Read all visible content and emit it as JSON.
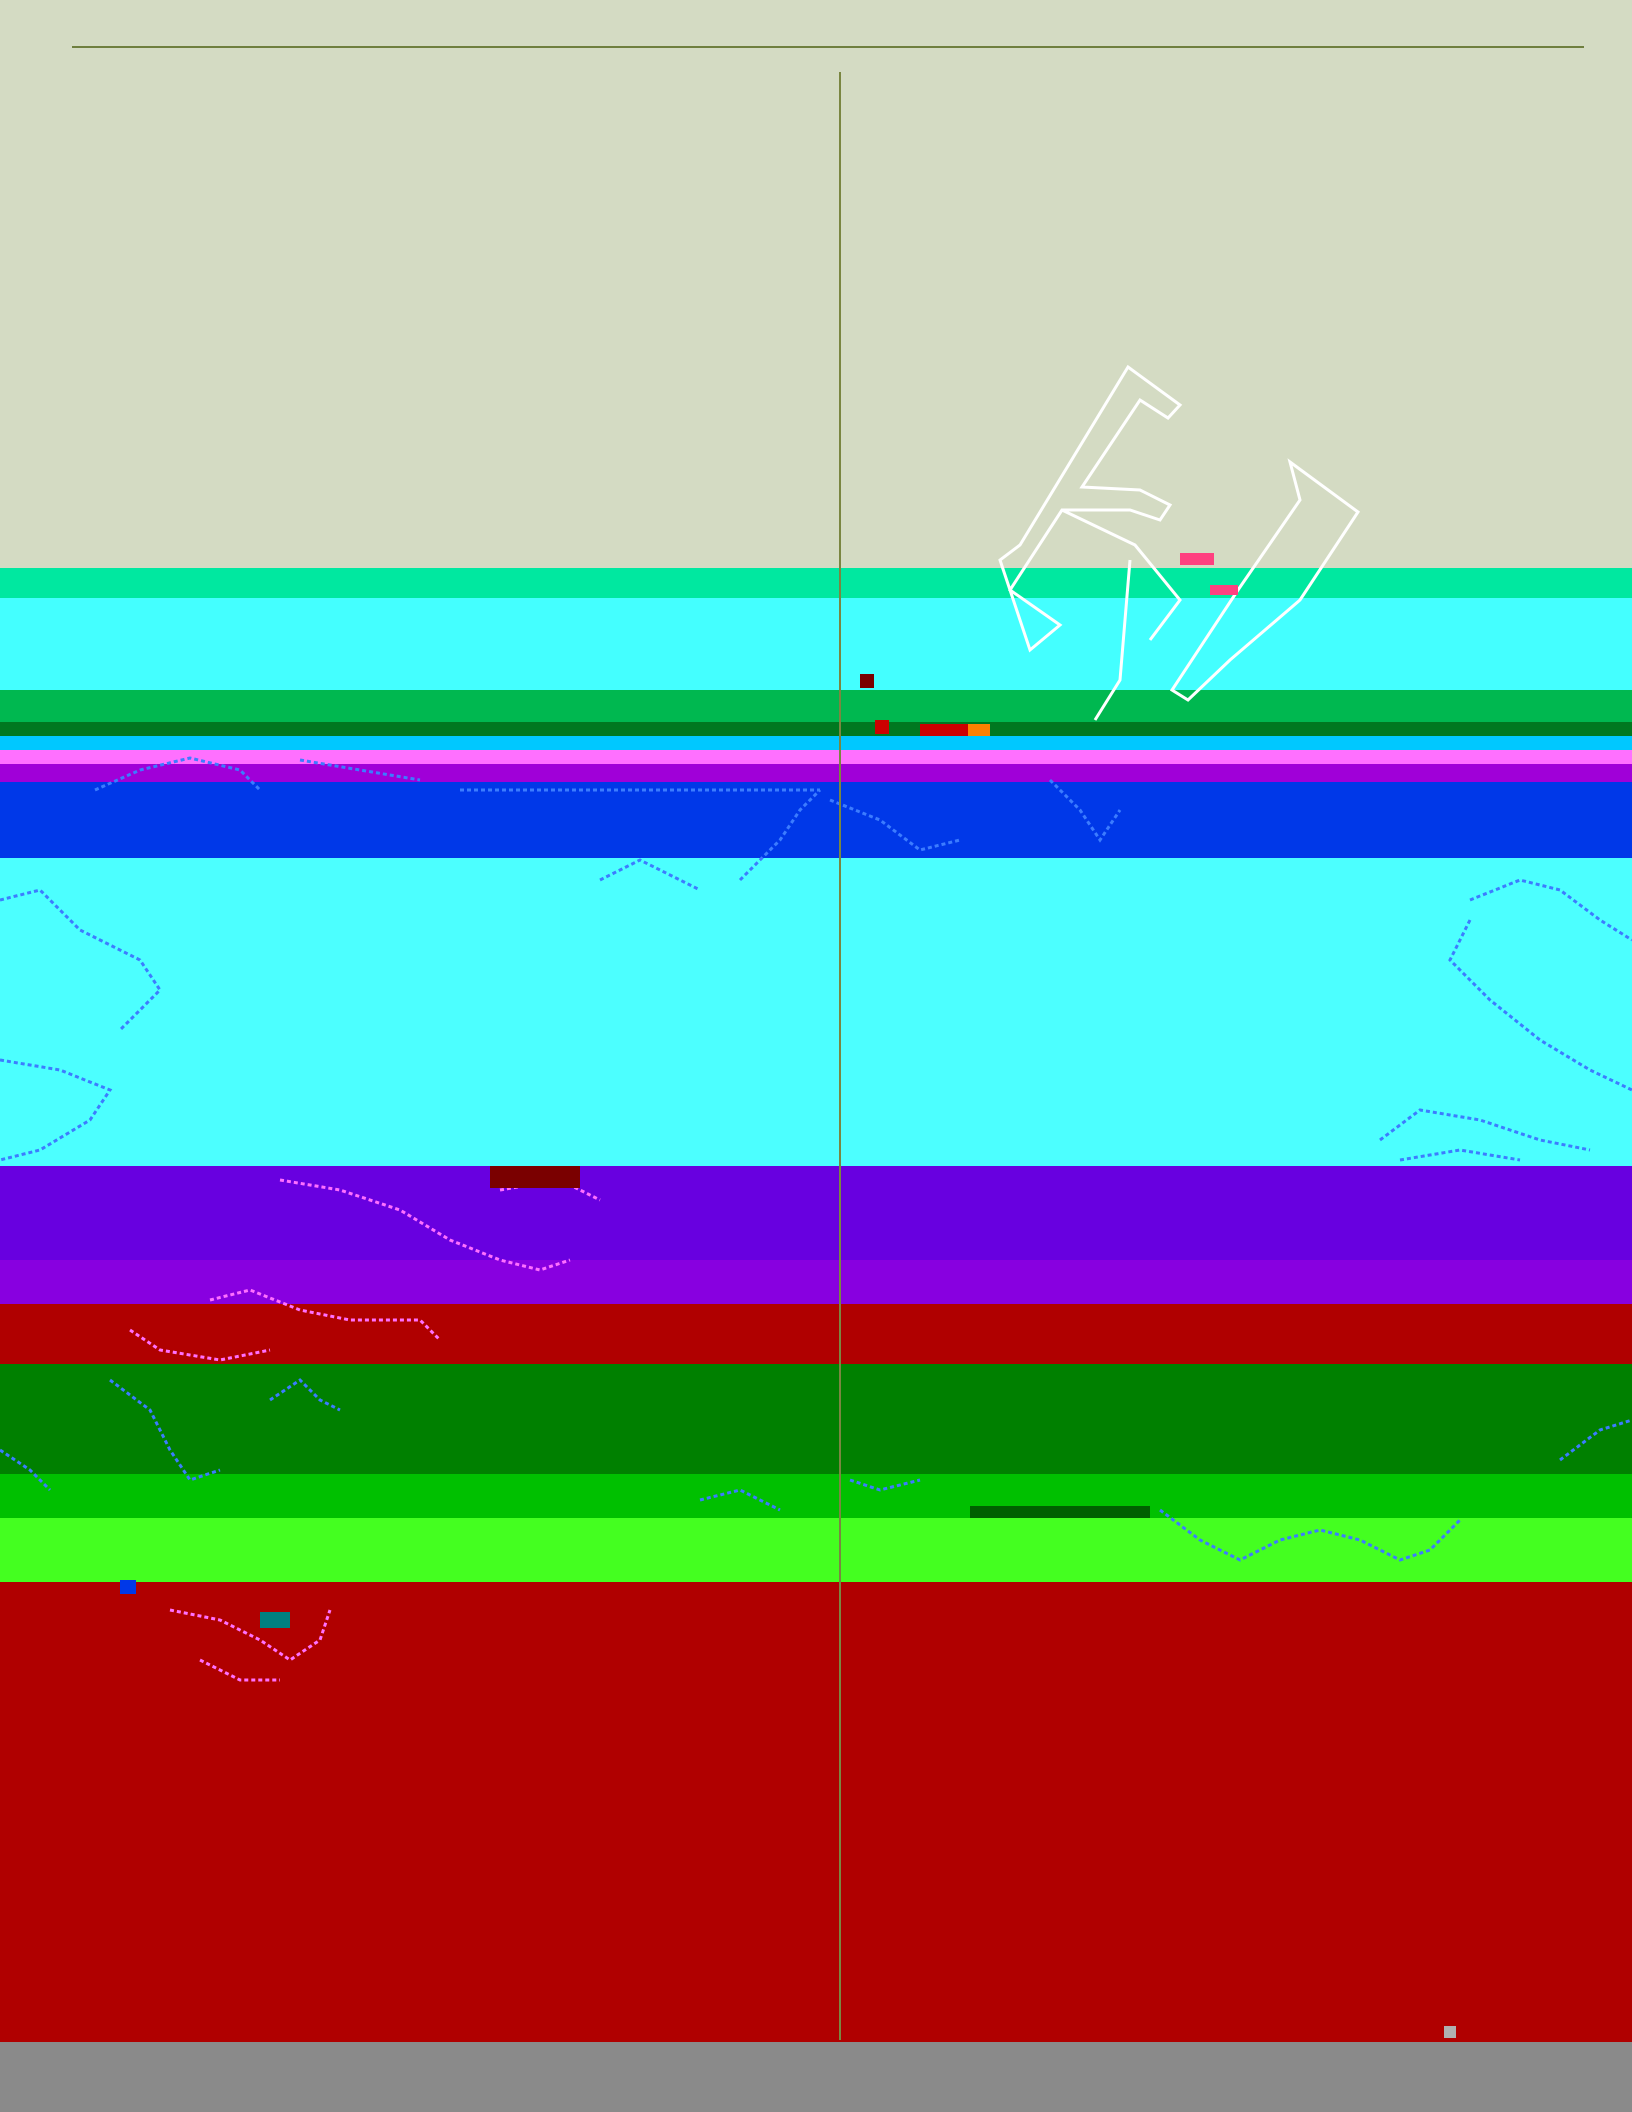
{
  "page": {
    "background": "#d4dbc3",
    "rule_color": "#6f7f3f",
    "divider_color": "#7a8641"
  },
  "bands": [
    {
      "color": "#00e8a0"
    },
    {
      "color": "#44ffff"
    },
    {
      "color": "#00b850"
    },
    {
      "color": "#007820"
    },
    {
      "color": "#00c8ff"
    },
    {
      "color": "#ff70ff"
    },
    {
      "color": "#a000d8"
    },
    {
      "color": "#0038e8"
    },
    {
      "color": "#4cffff"
    },
    {
      "color": "#6800e0"
    },
    {
      "color": "#8800e0"
    },
    {
      "color": "#b00000"
    },
    {
      "color": "#008000"
    },
    {
      "color": "#00c000"
    },
    {
      "color": "#44ff20"
    },
    {
      "color": "#b00000"
    }
  ],
  "artwork": {
    "letter_glyph": "F",
    "stroke_color": "#ffffff",
    "pattern_color": "#3c7cff",
    "accent_color": "#ff70ff"
  }
}
